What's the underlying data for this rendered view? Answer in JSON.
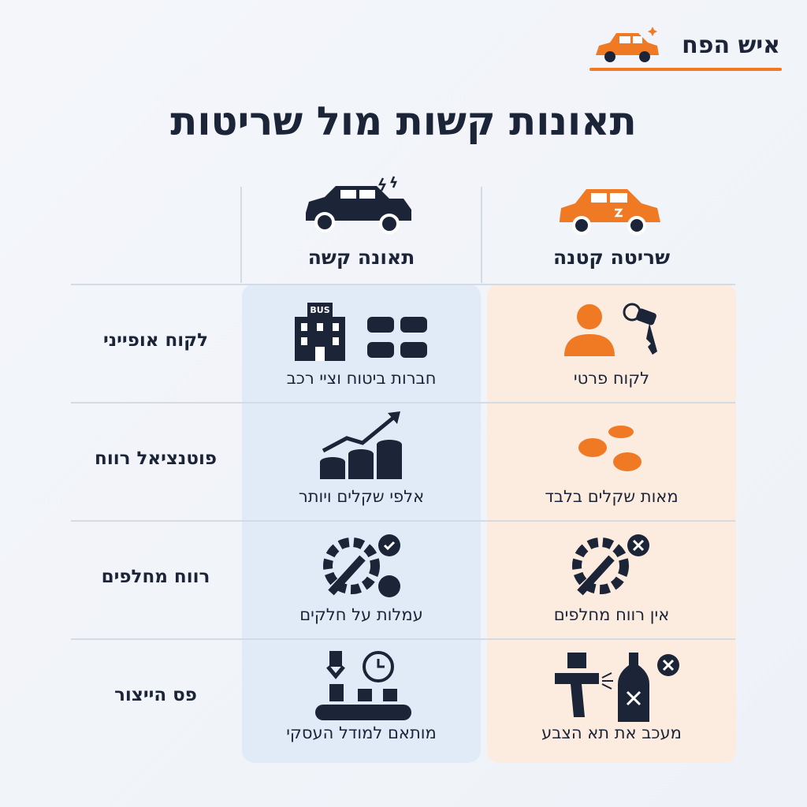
{
  "header": {
    "logo": "איש הפח",
    "title": "תאונות קשות מול שריטות"
  },
  "columns": {
    "small": "שריטה קטנה",
    "heavy": "תאונה קשה"
  },
  "rows": [
    {
      "label": "לקוח אופייני",
      "heavy": "חברות ביטוח וציי רכב",
      "heavy_icon_text": "BUS",
      "small": "לקוח פרטי"
    },
    {
      "label": "פוטנציאל רווח",
      "heavy": "אלפי שקלים ויותר",
      "small": "מאות שקלים בלבד"
    },
    {
      "label": "רווח מחלפים",
      "heavy": "עמלות על חלקים",
      "small": "אין רווח מחלפים"
    },
    {
      "label": "פס הייצור",
      "heavy": "מותאם למודל העסקי",
      "small": "מעכב את תא הצבע"
    }
  ]
}
